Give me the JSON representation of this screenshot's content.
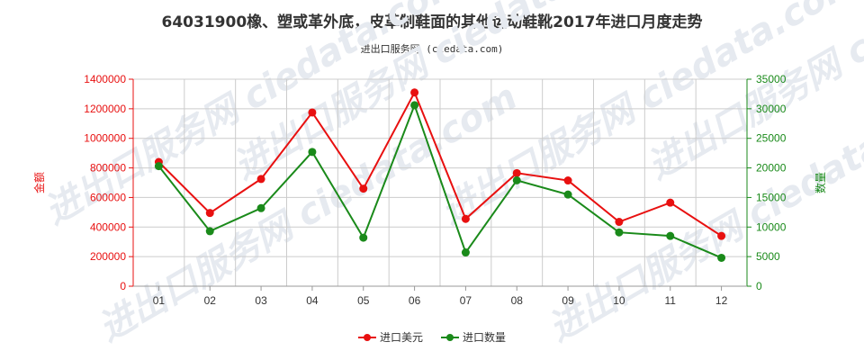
{
  "title": "64031900橡、塑或革外底，皮革制鞋面的其他运动鞋靴2017年进口月度走势",
  "subtitle": "进出口服务网 (ciedata.com)",
  "watermark": "进出口服务网 ciedata.com",
  "colors": {
    "left_axis": "#e81010",
    "right_axis": "#1a8a1a",
    "series_value": "#e81010",
    "series_qty": "#1a8a1a",
    "grid": "#cccccc"
  },
  "chart_data": {
    "type": "line",
    "categories": [
      "01",
      "02",
      "03",
      "04",
      "05",
      "06",
      "07",
      "08",
      "09",
      "10",
      "11",
      "12"
    ],
    "series": [
      {
        "name": "进口美元",
        "axis": "left",
        "values": [
          840000,
          495000,
          725000,
          1175000,
          660000,
          1310000,
          455000,
          765000,
          715000,
          435000,
          565000,
          340000
        ]
      },
      {
        "name": "进口数量",
        "axis": "right",
        "values": [
          20300,
          9300,
          13200,
          22700,
          8200,
          30600,
          5700,
          17900,
          15500,
          9100,
          8500,
          4800
        ]
      }
    ],
    "ylabel_left": "金额",
    "ylabel_right": "数量",
    "ylim_left": [
      0,
      1400000
    ],
    "ylim_right": [
      0,
      35000
    ],
    "yticks_left": [
      "0",
      "200000",
      "400000",
      "600000",
      "800000",
      "1000000",
      "1200000",
      "1400000"
    ],
    "yticks_right": [
      "0",
      "5000",
      "10000",
      "15000",
      "20000",
      "25000",
      "30000",
      "35000"
    ],
    "grid": true,
    "legend_position": "bottom"
  }
}
